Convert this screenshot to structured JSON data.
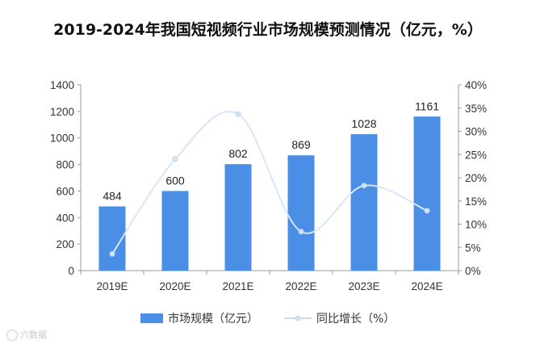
{
  "chart_data": {
    "type": "bar+line",
    "title": "2019-2024年我国短视频行业市场规模预测情况（亿元，%）",
    "categories": [
      "2019E",
      "2020E",
      "2021E",
      "2022E",
      "2023E",
      "2024E"
    ],
    "series": [
      {
        "name": "市场规模（亿元）",
        "type": "bar",
        "axis": "left",
        "values": [
          484,
          600,
          802,
          869,
          1028,
          1161
        ],
        "color": "#4a8ee6"
      },
      {
        "name": "同比增长（%）",
        "type": "line",
        "smooth": true,
        "axis": "right",
        "values": [
          3.6,
          24.0,
          33.7,
          8.4,
          18.3,
          12.9
        ],
        "color": "#d9e6f7"
      }
    ],
    "y_left": {
      "min": 0,
      "max": 1400,
      "step": 200,
      "ticks": [
        "0",
        "200",
        "400",
        "600",
        "800",
        "1000",
        "1200",
        "1400"
      ]
    },
    "y_right": {
      "min": 0,
      "max": 40,
      "step": 5,
      "ticks": [
        "0%",
        "5%",
        "10%",
        "15%",
        "20%",
        "25%",
        "30%",
        "35%",
        "40%"
      ]
    },
    "legend_position": "bottom",
    "grid": false
  },
  "watermark": {
    "text": "六数据",
    "color": "#c8c8c8"
  }
}
